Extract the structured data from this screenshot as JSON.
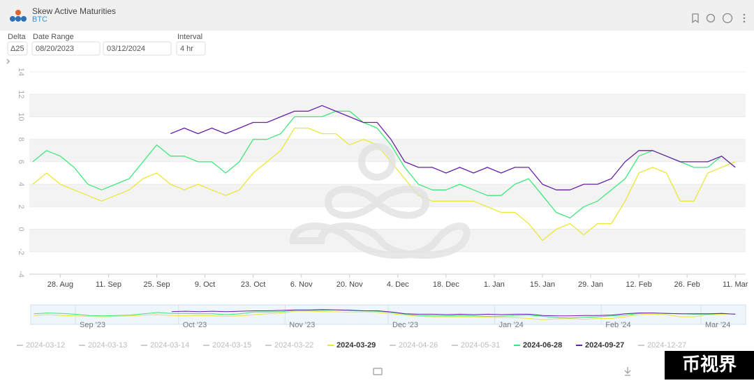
{
  "header": {
    "title": "Skew Active Maturities",
    "subtitle": "BTC"
  },
  "controls": {
    "delta_label": "Delta",
    "delta_value": "Δ25",
    "date_range_label": "Date Range",
    "start_date": "08/20/2023",
    "end_date": "03/12/2024",
    "interval_label": "Interval",
    "interval_value": "4 hr"
  },
  "watermark": "币视界",
  "chart_data": {
    "type": "line",
    "grid": true,
    "x": [
      "2023-08-20",
      "2023-08-24",
      "2023-08-28",
      "2023-09-01",
      "2023-09-05",
      "2023-09-09",
      "2023-09-13",
      "2023-09-17",
      "2023-09-21",
      "2023-09-25",
      "2023-09-29",
      "2023-10-03",
      "2023-10-07",
      "2023-10-11",
      "2023-10-15",
      "2023-10-19",
      "2023-10-23",
      "2023-10-27",
      "2023-10-31",
      "2023-11-04",
      "2023-11-08",
      "2023-11-12",
      "2023-11-16",
      "2023-11-20",
      "2023-11-24",
      "2023-11-28",
      "2023-12-02",
      "2023-12-06",
      "2023-12-10",
      "2023-12-14",
      "2023-12-18",
      "2023-12-22",
      "2023-12-26",
      "2023-12-30",
      "2024-01-03",
      "2024-01-07",
      "2024-01-11",
      "2024-01-15",
      "2024-01-19",
      "2024-01-23",
      "2024-01-27",
      "2024-01-31",
      "2024-02-04",
      "2024-02-08",
      "2024-02-12",
      "2024-02-16",
      "2024-02-20",
      "2024-02-24",
      "2024-02-28",
      "2024-03-03",
      "2024-03-07",
      "2024-03-11"
    ],
    "xlim": [
      "2023-08-19",
      "2024-03-14"
    ],
    "xticks": [
      {
        "value": "2023-08-28",
        "label": "28. Aug"
      },
      {
        "value": "2023-09-11",
        "label": "11. Sep"
      },
      {
        "value": "2023-09-25",
        "label": "25. Sep"
      },
      {
        "value": "2023-10-09",
        "label": "9. Oct"
      },
      {
        "value": "2023-10-23",
        "label": "23. Oct"
      },
      {
        "value": "2023-11-06",
        "label": "6. Nov"
      },
      {
        "value": "2023-11-20",
        "label": "20. Nov"
      },
      {
        "value": "2023-12-04",
        "label": "4. Dec"
      },
      {
        "value": "2023-12-18",
        "label": "18. Dec"
      },
      {
        "value": "2024-01-01",
        "label": "1. Jan"
      },
      {
        "value": "2024-01-15",
        "label": "15. Jan"
      },
      {
        "value": "2024-01-29",
        "label": "29. Jan"
      },
      {
        "value": "2024-02-12",
        "label": "12. Feb"
      },
      {
        "value": "2024-02-26",
        "label": "26. Feb"
      },
      {
        "value": "2024-03-11",
        "label": "11. Mar"
      }
    ],
    "navigator_ticks": [
      {
        "value": "2023-09-01",
        "label": "Sep '23"
      },
      {
        "value": "2023-10-01",
        "label": "Oct '23"
      },
      {
        "value": "2023-11-01",
        "label": "Nov '23"
      },
      {
        "value": "2023-12-01",
        "label": "Dec '23"
      },
      {
        "value": "2024-01-01",
        "label": "Jan '24"
      },
      {
        "value": "2024-02-01",
        "label": "Feb '24"
      },
      {
        "value": "2024-03-01",
        "label": "Mar '24"
      }
    ],
    "ylim": [
      -4,
      14
    ],
    "yticks": [
      -4,
      -2,
      0,
      2,
      4,
      6,
      8,
      10,
      12,
      14
    ],
    "series": [
      {
        "name": "2024-03-12",
        "color": "#cccccc",
        "visible": false
      },
      {
        "name": "2024-03-13",
        "color": "#cccccc",
        "visible": false
      },
      {
        "name": "2024-03-14",
        "color": "#cccccc",
        "visible": false
      },
      {
        "name": "2024-03-15",
        "color": "#cccccc",
        "visible": false
      },
      {
        "name": "2024-03-22",
        "color": "#cccccc",
        "visible": false
      },
      {
        "name": "2024-03-29",
        "color": "#e8e83a",
        "visible": true,
        "values": [
          4,
          5,
          4,
          3.5,
          3,
          2.5,
          3,
          3.5,
          4.5,
          5,
          4,
          3.5,
          4,
          3.5,
          3,
          3.5,
          5,
          6,
          7,
          9,
          9,
          8.5,
          8.5,
          7.5,
          8,
          7.5,
          6,
          4.5,
          3,
          2.5,
          2.5,
          2.5,
          2.5,
          2,
          1.5,
          1.5,
          0.5,
          -1,
          0,
          0.5,
          -0.5,
          0.5,
          0.5,
          2.5,
          5,
          5.5,
          5,
          2.5,
          2.5,
          5,
          5.5,
          6
        ]
      },
      {
        "name": "2024-04-26",
        "color": "#cccccc",
        "visible": false
      },
      {
        "name": "2024-05-31",
        "color": "#cccccc",
        "visible": false
      },
      {
        "name": "2024-06-28",
        "color": "#3ee87a",
        "visible": true,
        "values": [
          6,
          7,
          6.5,
          5.5,
          4,
          3.5,
          4,
          4.5,
          6,
          7.5,
          6.5,
          6.5,
          6,
          6,
          5,
          6,
          8,
          8,
          8.5,
          10,
          10,
          10,
          10.5,
          10.5,
          9.5,
          9,
          7.5,
          5.5,
          4,
          3.5,
          3.5,
          4,
          3.5,
          3,
          3,
          4,
          4.5,
          3,
          1.5,
          1,
          2,
          2.5,
          3.5,
          4.5,
          6.5,
          7,
          6.5,
          6,
          5.5,
          5.5,
          6.5,
          5.5
        ]
      },
      {
        "name": "2024-09-27",
        "color": "#6a1fa8",
        "visible": true,
        "values": [
          null,
          null,
          null,
          null,
          null,
          null,
          null,
          null,
          null,
          null,
          8.5,
          9,
          8.5,
          9,
          8.5,
          9,
          9.5,
          9.5,
          10,
          10.5,
          10.5,
          11,
          10.5,
          10,
          9.5,
          9.5,
          8,
          6,
          5.5,
          5.5,
          5,
          5.5,
          5,
          5.5,
          5,
          5.5,
          5.5,
          4,
          3.5,
          3.5,
          4,
          4,
          4.5,
          6,
          7,
          7,
          6.5,
          6,
          6,
          6,
          6.5,
          5.5
        ]
      },
      {
        "name": "2024-12-27",
        "color": "#cccccc",
        "visible": false
      }
    ]
  }
}
